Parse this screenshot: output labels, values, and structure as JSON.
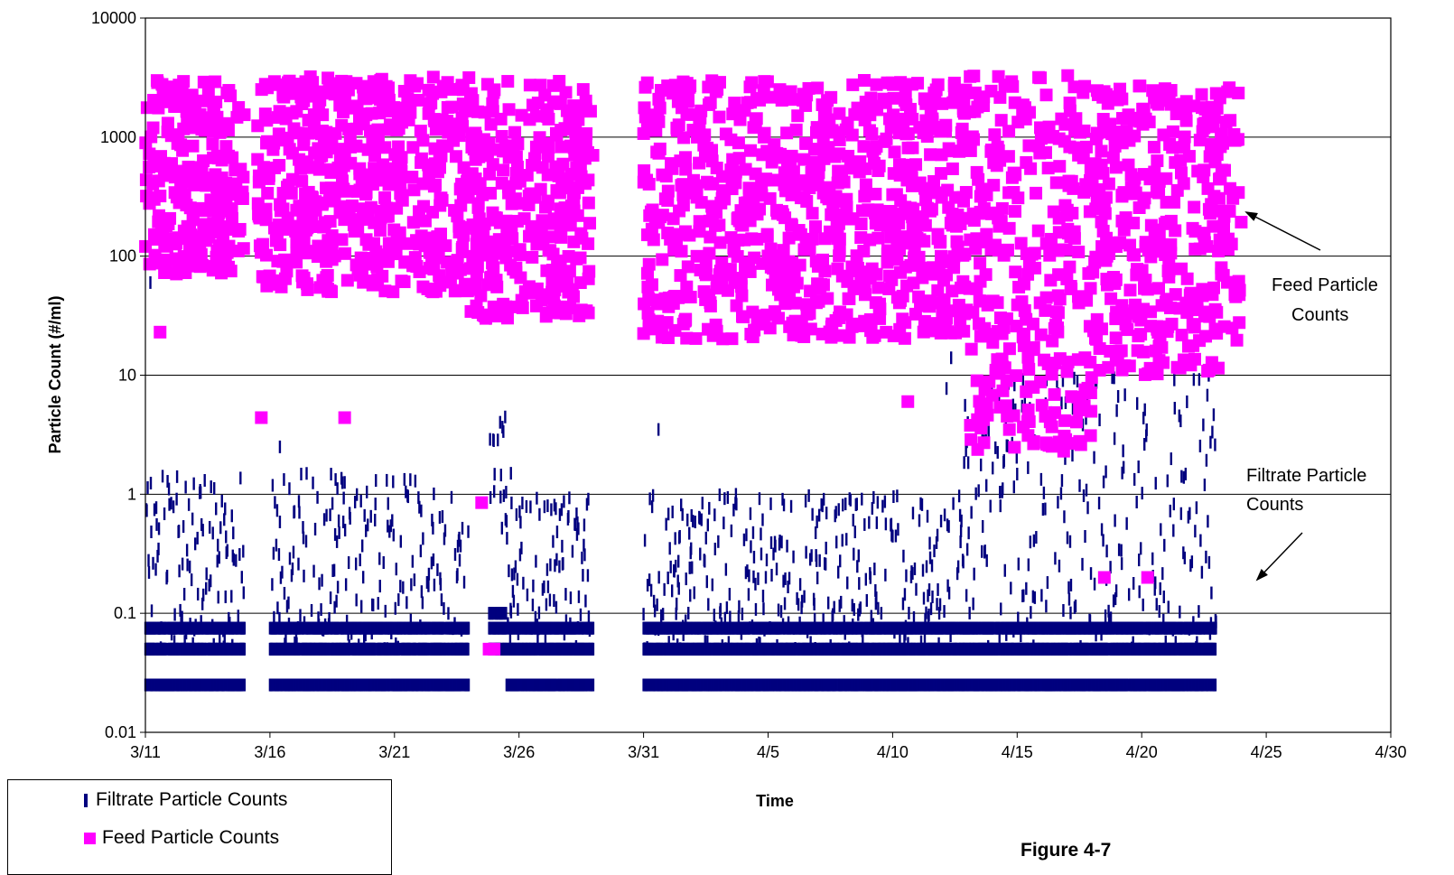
{
  "chart_data": {
    "type": "scatter",
    "xlabel": "Time",
    "ylabel": "Particle Count (#/ml)",
    "x_ticks": [
      "3/11",
      "3/16",
      "3/21",
      "3/26",
      "3/31",
      "4/5",
      "4/10",
      "4/15",
      "4/20",
      "4/25",
      "4/30"
    ],
    "y_ticks": [
      "0.01",
      "0.1",
      "1",
      "10",
      "100",
      "1000",
      "10000"
    ],
    "xlim": [
      "3/11",
      "4/30"
    ],
    "ylim": [
      0.01,
      10000
    ],
    "y_scale": "log",
    "grid": "horizontal major gridlines",
    "legend_position": "bottom-left",
    "series": [
      {
        "name": "Filtrate Particle Counts",
        "color": "#00007F",
        "marker": "vertical dash",
        "data_ranges": [
          {
            "start": "3/11",
            "end": "3/15",
            "floor": 0.025,
            "typical": [
              0.05,
              1.5
            ],
            "max": 60
          },
          {
            "start": "3/16",
            "end": "3/24",
            "floor": 0.025,
            "typical": [
              0.05,
              1.5
            ],
            "max": 2.5
          },
          {
            "start": "3/24.8",
            "end": "3/25.5",
            "floor": 0.1,
            "typical": [
              0.5,
              5
            ],
            "max": 30
          },
          {
            "start": "3/25.5",
            "end": "3/29",
            "floor": 0.025,
            "typical": [
              0.05,
              1.0
            ],
            "max": 1.5
          },
          {
            "start": "3/31",
            "end": "4/12",
            "floor": 0.025,
            "typical": [
              0.05,
              1.0
            ],
            "max": 3.5
          },
          {
            "start": "4/12",
            "end": "4/19",
            "floor": 0.025,
            "typical": [
              0.05,
              10
            ],
            "max": 14
          },
          {
            "start": "4/19",
            "end": "4/23",
            "floor": 0.025,
            "typical": [
              0.05,
              10
            ],
            "max": 15
          }
        ]
      },
      {
        "name": "Feed Particle Counts",
        "color": "#FF00FF",
        "marker": "square",
        "data_ranges": [
          {
            "start": "3/11",
            "end": "3/15",
            "typical": [
              70,
              3000
            ],
            "min": 23
          },
          {
            "start": "3/15.5",
            "end": "3/24",
            "typical": [
              50,
              3300
            ],
            "min": 4.4
          },
          {
            "start": "3/24",
            "end": "3/29",
            "typical": [
              30,
              3000
            ],
            "min": 0.05
          },
          {
            "start": "3/31",
            "end": "4/13",
            "typical": [
              20,
              3000
            ],
            "min": 6
          },
          {
            "start": "4/13",
            "end": "4/18",
            "typical": [
              2.3,
              3300
            ],
            "min": 2.3
          },
          {
            "start": "4/18",
            "end": "4/24",
            "typical": [
              10,
              2700
            ],
            "min": 0.2
          }
        ],
        "notable_points": [
          {
            "x": "3/24.5",
            "y": 0.85
          },
          {
            "x": "3/25",
            "y": 0.05
          },
          {
            "x": "3/19",
            "y": 4.4
          },
          {
            "x": "4/18.5",
            "y": 0.2
          }
        ]
      }
    ]
  },
  "annotations": {
    "feed": [
      "Feed Particle",
      "Counts"
    ],
    "filtrate": [
      "Filtrate Particle",
      "Counts"
    ]
  },
  "legend": {
    "filtrate": "Filtrate Particle Counts",
    "feed": "Feed Particle Counts"
  },
  "caption": "Figure 4-7"
}
